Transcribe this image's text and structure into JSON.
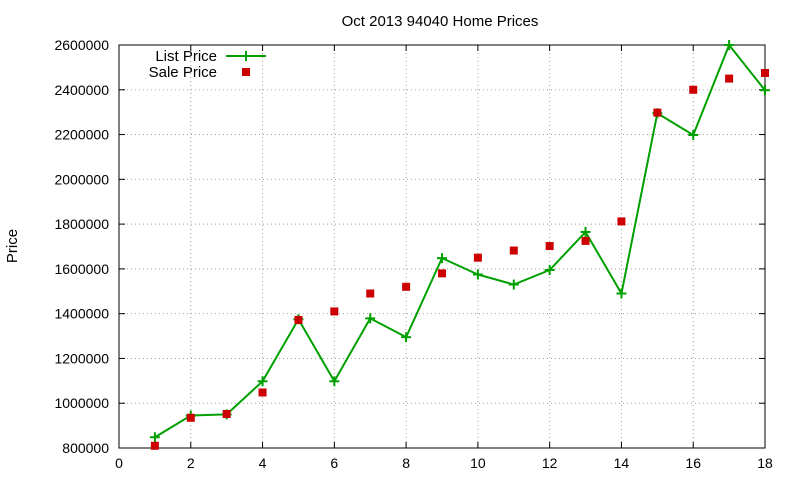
{
  "chart_data": {
    "type": "line",
    "title": "Oct 2013 94040 Home Prices",
    "xlabel": "",
    "ylabel": "Price",
    "xlim": [
      0,
      18
    ],
    "ylim": [
      800000,
      2600000
    ],
    "xticks": [
      "0",
      "2",
      "4",
      "6",
      "8",
      "10",
      "12",
      "14",
      "16",
      "18"
    ],
    "yticks": [
      "800000",
      "1000000",
      "1200000",
      "1400000",
      "1600000",
      "1800000",
      "2000000",
      "2200000",
      "2400000",
      "2600000"
    ],
    "grid": true,
    "legend_position": "top-left",
    "series": [
      {
        "name": "List Price",
        "style": "line-plus",
        "color": "#00a000",
        "x": [
          1,
          2,
          3,
          4,
          5,
          6,
          7,
          8,
          9,
          10,
          11,
          12,
          13,
          14,
          15,
          16,
          17,
          18
        ],
        "y": [
          848000,
          945000,
          950000,
          1098000,
          1375000,
          1098000,
          1379000,
          1295000,
          1648000,
          1575000,
          1530000,
          1595000,
          1765000,
          1490000,
          2295000,
          2198000,
          2600000,
          2398000
        ]
      },
      {
        "name": "Sale Price",
        "style": "square-points",
        "color": "#cc0000",
        "x": [
          1,
          2,
          3,
          4,
          5,
          6,
          7,
          8,
          9,
          10,
          11,
          12,
          13,
          14,
          15,
          16,
          17,
          18
        ],
        "y": [
          810000,
          935000,
          952000,
          1048000,
          1372000,
          1410000,
          1490000,
          1520000,
          1580000,
          1650000,
          1682000,
          1702000,
          1725000,
          1812000,
          2298000,
          2400000,
          2450000,
          2475000
        ]
      }
    ]
  }
}
